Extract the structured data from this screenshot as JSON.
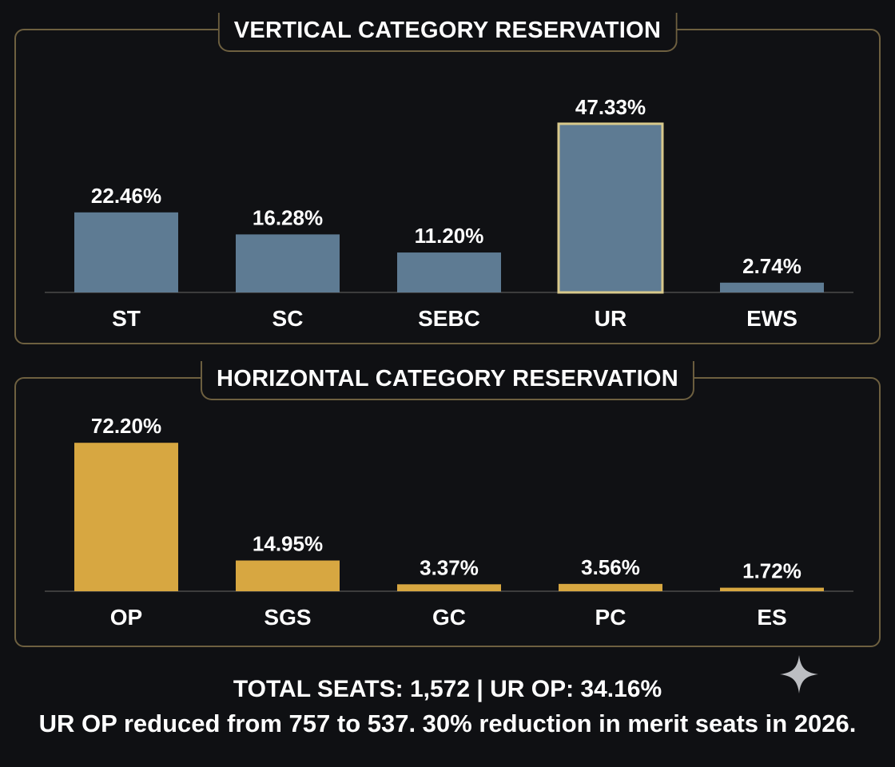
{
  "colors": {
    "background": "#0f1013",
    "panel_border": "#6e6040",
    "vertical_bar": "#5e7b93",
    "horizontal_bar": "#d7a741",
    "highlight_border": "#d8c98c",
    "text": "#ffffff"
  },
  "chart_data": [
    {
      "type": "bar",
      "title": "VERTICAL CATEGORY RESERVATION",
      "categories": [
        "ST",
        "SC",
        "SEBC",
        "UR",
        "EWS"
      ],
      "values": [
        22.46,
        16.28,
        11.2,
        47.33,
        2.74
      ],
      "data_labels": [
        "22.46%",
        "16.28%",
        "11.20%",
        "47.33%",
        "2.74%"
      ],
      "highlighted_category": "UR",
      "ylim": [
        0,
        50
      ],
      "grid": false,
      "color": "#5e7b93"
    },
    {
      "type": "bar",
      "title": "HORIZONTAL CATEGORY RESERVATION",
      "categories": [
        "OP",
        "SGS",
        "GC",
        "PC",
        "ES"
      ],
      "values": [
        72.2,
        14.95,
        3.37,
        3.56,
        1.72
      ],
      "data_labels": [
        "72.20%",
        "14.95%",
        "3.37%",
        "3.56%",
        "1.72%"
      ],
      "ylim": [
        0,
        75
      ],
      "grid": false,
      "color": "#d7a741"
    }
  ],
  "footer": {
    "line1": "TOTAL SEATS: 1,572 | UR OP: 34.16%",
    "line2": "UR OP reduced from 757 to 537. 30% reduction in merit seats in 2026."
  },
  "icons": {
    "corner": "sparkle-icon"
  }
}
